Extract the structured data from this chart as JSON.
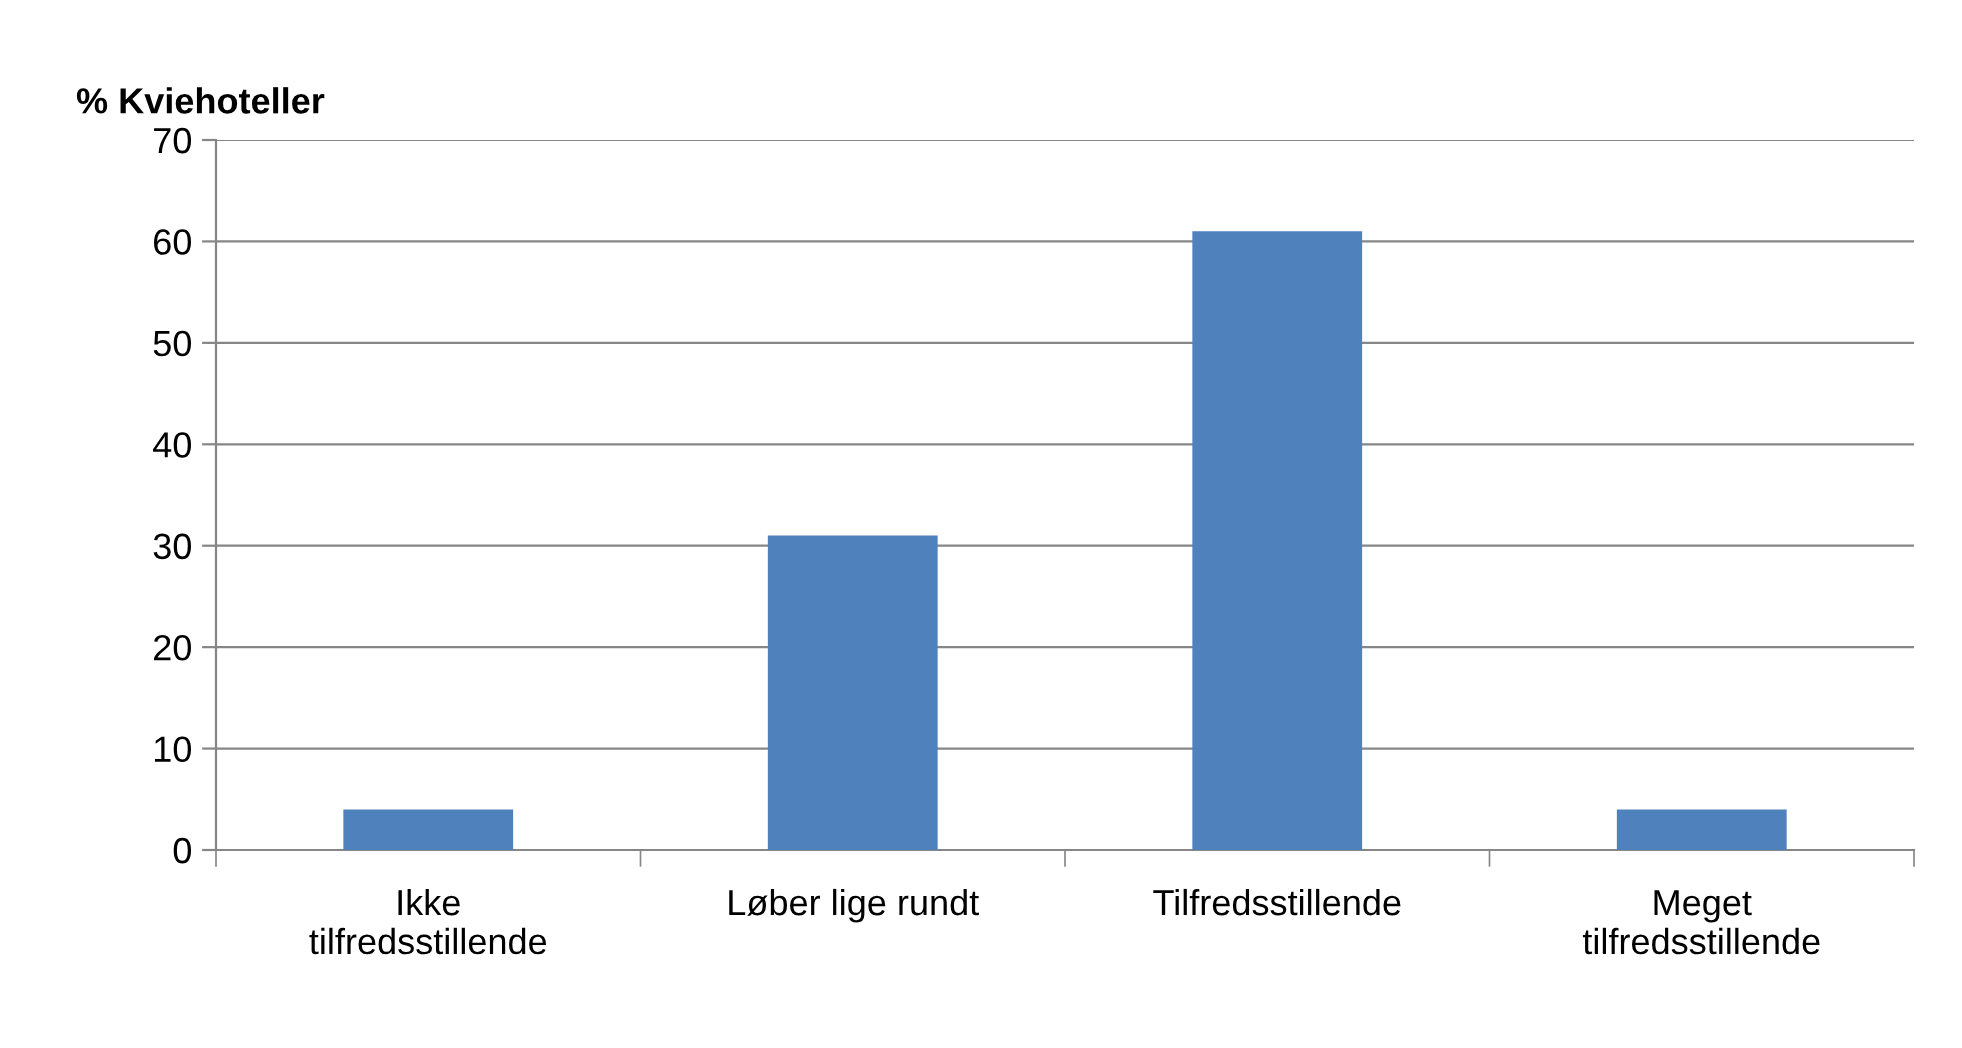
{
  "chart_data": {
    "type": "bar",
    "ylabel": "% Kviehoteller",
    "categories": [
      "Ikke\ntilfredsstillende",
      "Løber lige rundt",
      "Tilfredsstillende",
      "Meget\ntilfredsstillende"
    ],
    "values": [
      4,
      31,
      61,
      4
    ],
    "color": "#4f81bd",
    "ylim": [
      0,
      70
    ],
    "yticks": [
      0,
      10,
      20,
      30,
      40,
      50,
      60,
      70
    ],
    "grid": "y",
    "legend": false
  }
}
